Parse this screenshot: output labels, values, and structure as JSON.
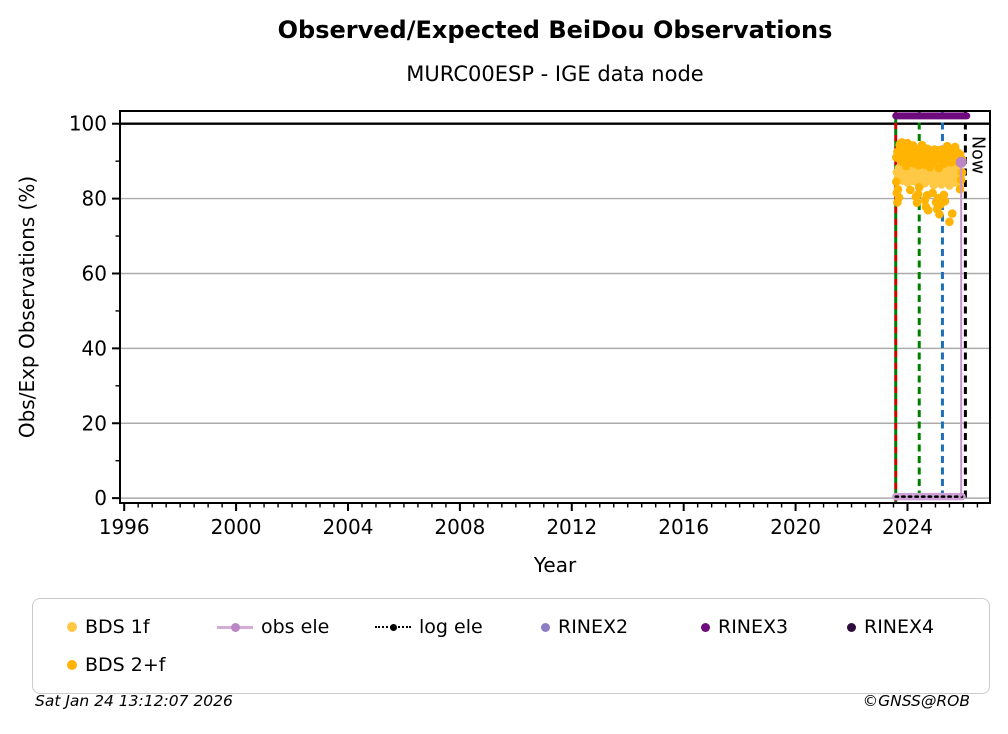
{
  "footer": {
    "timestamp": "Sat Jan 24 13:12:07 2026",
    "copyright": "©GNSS@ROB"
  },
  "legend": {
    "items": [
      {
        "label": "BDS 1f",
        "marker": "dot",
        "color": "#FFC845"
      },
      {
        "label": "obs ele",
        "marker": "line-dot",
        "color": "#BC85C4",
        "line_color": "#D4ACD8"
      },
      {
        "label": "log ele",
        "marker": "dotted-line-dot",
        "color": "#000000"
      },
      {
        "label": "RINEX2",
        "marker": "dot",
        "color": "#8C7DC4"
      },
      {
        "label": "RINEX3",
        "marker": "dot",
        "color": "#6E0B7E"
      },
      {
        "label": "RINEX4",
        "marker": "dot",
        "color": "#2E0C3E"
      },
      {
        "label": "BDS 2+f",
        "marker": "dot",
        "color": "#FFB302"
      }
    ]
  },
  "chart_data": {
    "type": "scatter",
    "title": "Observed/Expected BeiDou Observations",
    "subtitle": "MURC00ESP - IGE data node",
    "xlabel": "Year",
    "ylabel": "Obs/Exp Observations (%)",
    "xlim": [
      1995.85,
      2026.95
    ],
    "ylim": [
      -1.3,
      103.4
    ],
    "x_major_ticks": [
      1996,
      2000,
      2004,
      2008,
      2012,
      2016,
      2020,
      2024
    ],
    "x_minor_step": 0.5,
    "y_major_ticks": [
      0,
      20,
      40,
      60,
      80,
      100
    ],
    "y_minor_step": 10,
    "grid_y": [
      0,
      20,
      40,
      60,
      80
    ],
    "grid_color": "#ABABAB",
    "frame_color": "#000000",
    "reference_line": {
      "y": 100,
      "color": "#000000",
      "width": 2.4
    },
    "events": [
      {
        "year": 2023.58,
        "colors": [
          "#D40000",
          "#007F00"
        ],
        "style": "dashed"
      },
      {
        "year": 2024.42,
        "colors": [
          "#007F00"
        ],
        "style": "dashed"
      },
      {
        "year": 2025.25,
        "colors": [
          "#1E6FB8"
        ],
        "style": "dashed"
      },
      {
        "year": 2026.07,
        "colors": [
          "#000000"
        ],
        "style": "dashed",
        "label": "Now"
      }
    ],
    "series": [
      {
        "name": "obs ele",
        "type": "line",
        "color": "#D0A3D6",
        "width": 7.5,
        "points": [
          [
            2023.58,
            0.4
          ],
          [
            2025.95,
            0.4
          ]
        ],
        "spike": {
          "x": 2025.92,
          "y_base": 0.4,
          "y_top": 89.7,
          "line_color": "#C794CE",
          "marker_color": "#BC85C4",
          "marker_radius": 5.5
        }
      },
      {
        "name": "log ele",
        "type": "dotted-line",
        "color": "#000000",
        "width": 2.6,
        "points": [
          [
            2023.58,
            0.4
          ],
          [
            2025.95,
            0.4
          ]
        ]
      },
      {
        "name": "BDS 1f",
        "type": "scatter",
        "color": "#FFC845",
        "marker_radius": 4.3,
        "points": [
          [
            2023.62,
            87
          ],
          [
            2023.66,
            85.5
          ],
          [
            2023.7,
            88.2
          ],
          [
            2023.74,
            86.1
          ],
          [
            2023.78,
            89
          ],
          [
            2023.82,
            84.8
          ],
          [
            2023.86,
            87.6
          ],
          [
            2023.9,
            85.9
          ],
          [
            2023.94,
            88.8
          ],
          [
            2023.98,
            86.4
          ],
          [
            2024.02,
            84.2
          ],
          [
            2024.06,
            87.1
          ],
          [
            2024.1,
            89.3
          ],
          [
            2024.14,
            85.2
          ],
          [
            2024.18,
            86.8
          ],
          [
            2024.22,
            88.5
          ],
          [
            2024.26,
            84.6
          ],
          [
            2024.3,
            87.9
          ],
          [
            2024.34,
            85.1
          ],
          [
            2024.38,
            88
          ],
          [
            2024.42,
            86.6
          ],
          [
            2024.46,
            83.9
          ],
          [
            2024.5,
            87.4
          ],
          [
            2024.54,
            89.1
          ],
          [
            2024.58,
            85.7
          ],
          [
            2024.62,
            84.1
          ],
          [
            2024.66,
            88.3
          ],
          [
            2024.7,
            86.2
          ],
          [
            2024.74,
            87.8
          ],
          [
            2024.78,
            84.9
          ],
          [
            2024.82,
            86
          ],
          [
            2024.86,
            88.6
          ],
          [
            2024.9,
            85.4
          ],
          [
            2024.94,
            83.6
          ],
          [
            2024.98,
            87.2
          ],
          [
            2025.02,
            89.2
          ],
          [
            2025.06,
            84.4
          ],
          [
            2025.1,
            86.9
          ],
          [
            2025.14,
            88.1
          ],
          [
            2025.18,
            85.8
          ],
          [
            2025.22,
            83.8
          ],
          [
            2025.26,
            87.5
          ],
          [
            2025.3,
            86.3
          ],
          [
            2025.34,
            88.9
          ],
          [
            2025.38,
            84.7
          ],
          [
            2025.42,
            85.3
          ],
          [
            2025.46,
            87.7
          ],
          [
            2025.5,
            83.5
          ],
          [
            2025.54,
            86.5
          ],
          [
            2025.58,
            88.4
          ],
          [
            2025.62,
            85
          ],
          [
            2025.66,
            84.3
          ],
          [
            2025.7,
            87.3
          ],
          [
            2025.74,
            86.7
          ],
          [
            2025.78,
            88.7
          ],
          [
            2025.82,
            85.6
          ],
          [
            2025.86,
            84
          ],
          [
            2025.9,
            86.1
          ],
          [
            2025.94,
            89.5
          ]
        ]
      },
      {
        "name": "BDS 2+f",
        "type": "scatter",
        "color": "#FFB302",
        "marker_radius": 4.3,
        "points": [
          [
            2023.6,
            91
          ],
          [
            2023.64,
            92.5
          ],
          [
            2023.68,
            90.8
          ],
          [
            2023.72,
            93
          ],
          [
            2023.76,
            91.5
          ],
          [
            2023.8,
            89.9
          ],
          [
            2023.84,
            92.2
          ],
          [
            2023.88,
            93.4
          ],
          [
            2023.92,
            90.5
          ],
          [
            2023.96,
            88.7
          ],
          [
            2024,
            91.8
          ],
          [
            2024.04,
            92.9
          ],
          [
            2024.08,
            90.2
          ],
          [
            2024.12,
            93.1
          ],
          [
            2024.16,
            91.9
          ],
          [
            2024.2,
            89.5
          ],
          [
            2024.24,
            92.6
          ],
          [
            2024.28,
            93.2
          ],
          [
            2024.32,
            90.9
          ],
          [
            2024.36,
            92
          ],
          [
            2024.4,
            88.9
          ],
          [
            2024.44,
            91.3
          ],
          [
            2024.48,
            93
          ],
          [
            2024.52,
            92.1
          ],
          [
            2024.56,
            90.4
          ],
          [
            2024.6,
            89.1
          ],
          [
            2024.64,
            92.8
          ],
          [
            2024.68,
            91.6
          ],
          [
            2024.72,
            93.3
          ],
          [
            2024.76,
            90
          ],
          [
            2024.8,
            88.4
          ],
          [
            2024.84,
            91.1
          ],
          [
            2024.88,
            92.4
          ],
          [
            2024.92,
            89.8
          ],
          [
            2024.96,
            93.1
          ],
          [
            2025,
            91.4
          ],
          [
            2025.04,
            90.6
          ],
          [
            2025.08,
            92.9
          ],
          [
            2025.12,
            88.2
          ],
          [
            2025.16,
            91.7
          ],
          [
            2025.2,
            93
          ],
          [
            2025.24,
            90.3
          ],
          [
            2025.28,
            92.2
          ],
          [
            2025.32,
            89.4
          ],
          [
            2025.36,
            91.9
          ],
          [
            2025.4,
            92.7
          ],
          [
            2025.44,
            90.1
          ],
          [
            2025.48,
            93.2
          ],
          [
            2025.52,
            91
          ],
          [
            2025.56,
            89.7
          ],
          [
            2025.6,
            92.5
          ],
          [
            2025.64,
            90.8
          ],
          [
            2025.68,
            93.1
          ],
          [
            2025.72,
            91.2
          ],
          [
            2025.76,
            89.9
          ],
          [
            2025.8,
            92.3
          ],
          [
            2025.84,
            90.5
          ],
          [
            2025.88,
            91.8
          ],
          [
            2025.92,
            90.2
          ],
          [
            2023.6,
            84.5
          ],
          [
            2023.62,
            81.5
          ],
          [
            2023.64,
            79
          ],
          [
            2023.66,
            82.5
          ],
          [
            2023.7,
            80.3
          ],
          [
            2023.72,
            94.4
          ],
          [
            2023.8,
            95
          ],
          [
            2023.88,
            94.6
          ],
          [
            2024,
            94.8
          ],
          [
            2024.1,
            82.3
          ],
          [
            2024.2,
            94.2
          ],
          [
            2024.3,
            80.5
          ],
          [
            2024.34,
            78.9
          ],
          [
            2024.38,
            81.2
          ],
          [
            2024.42,
            83
          ],
          [
            2024.52,
            94.3
          ],
          [
            2024.62,
            79.6
          ],
          [
            2024.66,
            77.8
          ],
          [
            2024.7,
            80.9
          ],
          [
            2024.74,
            76.9
          ],
          [
            2024.9,
            81.5
          ],
          [
            2025.02,
            79
          ],
          [
            2025.06,
            77.2
          ],
          [
            2025.1,
            80.1
          ],
          [
            2025.14,
            75.8
          ],
          [
            2025.18,
            78.4
          ],
          [
            2025.3,
            81
          ],
          [
            2025.34,
            79.3
          ],
          [
            2025.42,
            94
          ],
          [
            2025.5,
            73.8
          ],
          [
            2025.6,
            76
          ],
          [
            2025.7,
            93.8
          ],
          [
            2025.88,
            82.5
          ],
          [
            2025.92,
            85
          ],
          [
            2025.95,
            90.5
          ],
          [
            2025.95,
            87
          ]
        ]
      },
      {
        "name": "RINEX3",
        "type": "line",
        "color": "#6E0B7E",
        "width": 7,
        "points": [
          [
            2023.58,
            102.1
          ],
          [
            2026.12,
            102.1
          ]
        ]
      }
    ]
  }
}
